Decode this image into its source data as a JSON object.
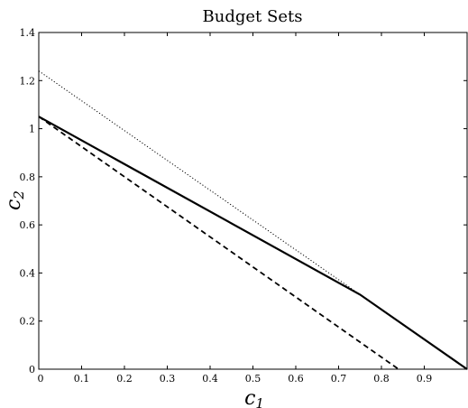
{
  "chart_data": {
    "type": "line",
    "title": "Budget Sets",
    "xlabel": {
      "base": "c",
      "sub": "1"
    },
    "ylabel": {
      "base": "c",
      "sub": "2"
    },
    "xlim": [
      0,
      1
    ],
    "ylim": [
      0,
      1.4
    ],
    "xticks": [
      0,
      0.1,
      0.2,
      0.3,
      0.4,
      0.5,
      0.6,
      0.7,
      0.8,
      0.9
    ],
    "xtick_labels": [
      "0",
      "0.1",
      "0.2",
      "0.3",
      "0.4",
      "0.5",
      "0.6",
      "0.7",
      "0.8",
      "0.9"
    ],
    "yticks": [
      0,
      0.2,
      0.4,
      0.6,
      0.8,
      1,
      1.2,
      1.4
    ],
    "ytick_labels": [
      "0",
      "0.2",
      "0.4",
      "0.6",
      "0.8",
      "1",
      "1.2",
      "1.4"
    ],
    "grid": false,
    "series": [
      {
        "style": "solid",
        "x": [
          0,
          0.75,
          1.0
        ],
        "y": [
          1.05,
          0.31,
          0.0
        ]
      },
      {
        "style": "dashed",
        "x": [
          0,
          0.84
        ],
        "y": [
          1.05,
          0.0
        ]
      },
      {
        "style": "dotted",
        "x": [
          0,
          0.75
        ],
        "y": [
          1.24,
          0.31
        ]
      }
    ]
  }
}
